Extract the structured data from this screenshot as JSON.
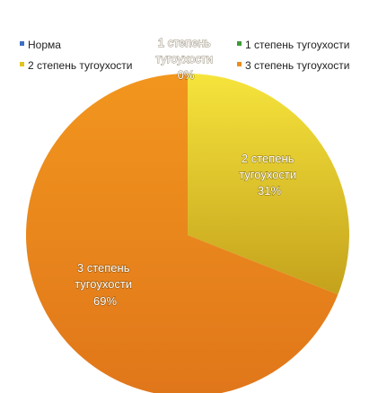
{
  "chart_data": {
    "type": "pie",
    "categories": [
      "Норма",
      "1 степень  тугоухости",
      "2 степень  тугоухости",
      "3 степень  тугоухости"
    ],
    "values": [
      0,
      0,
      31,
      69
    ],
    "labels": [
      {
        "lines": [
          "1 степень",
          "тугоухости",
          "0%"
        ]
      },
      {
        "lines": [
          "2 степень",
          "тугоухости",
          "31%"
        ]
      },
      {
        "lines": [
          "3 степень",
          "тугоухости",
          "69%"
        ]
      }
    ],
    "colors": [
      "#3A6FC4",
      "#3E9A3A",
      "#E0C420",
      "#EC8E1C"
    ],
    "legend": {
      "placement": "top",
      "items": [
        {
          "label": "Норма",
          "color": "#3A6FC4"
        },
        {
          "label": "1 степень  тугоухости",
          "color": "#3E9A3A"
        },
        {
          "label": "2 степень  тугоухости",
          "color": "#E0C420"
        },
        {
          "label": "3 степень  тугоухости",
          "color": "#EC8E1C"
        }
      ]
    }
  }
}
